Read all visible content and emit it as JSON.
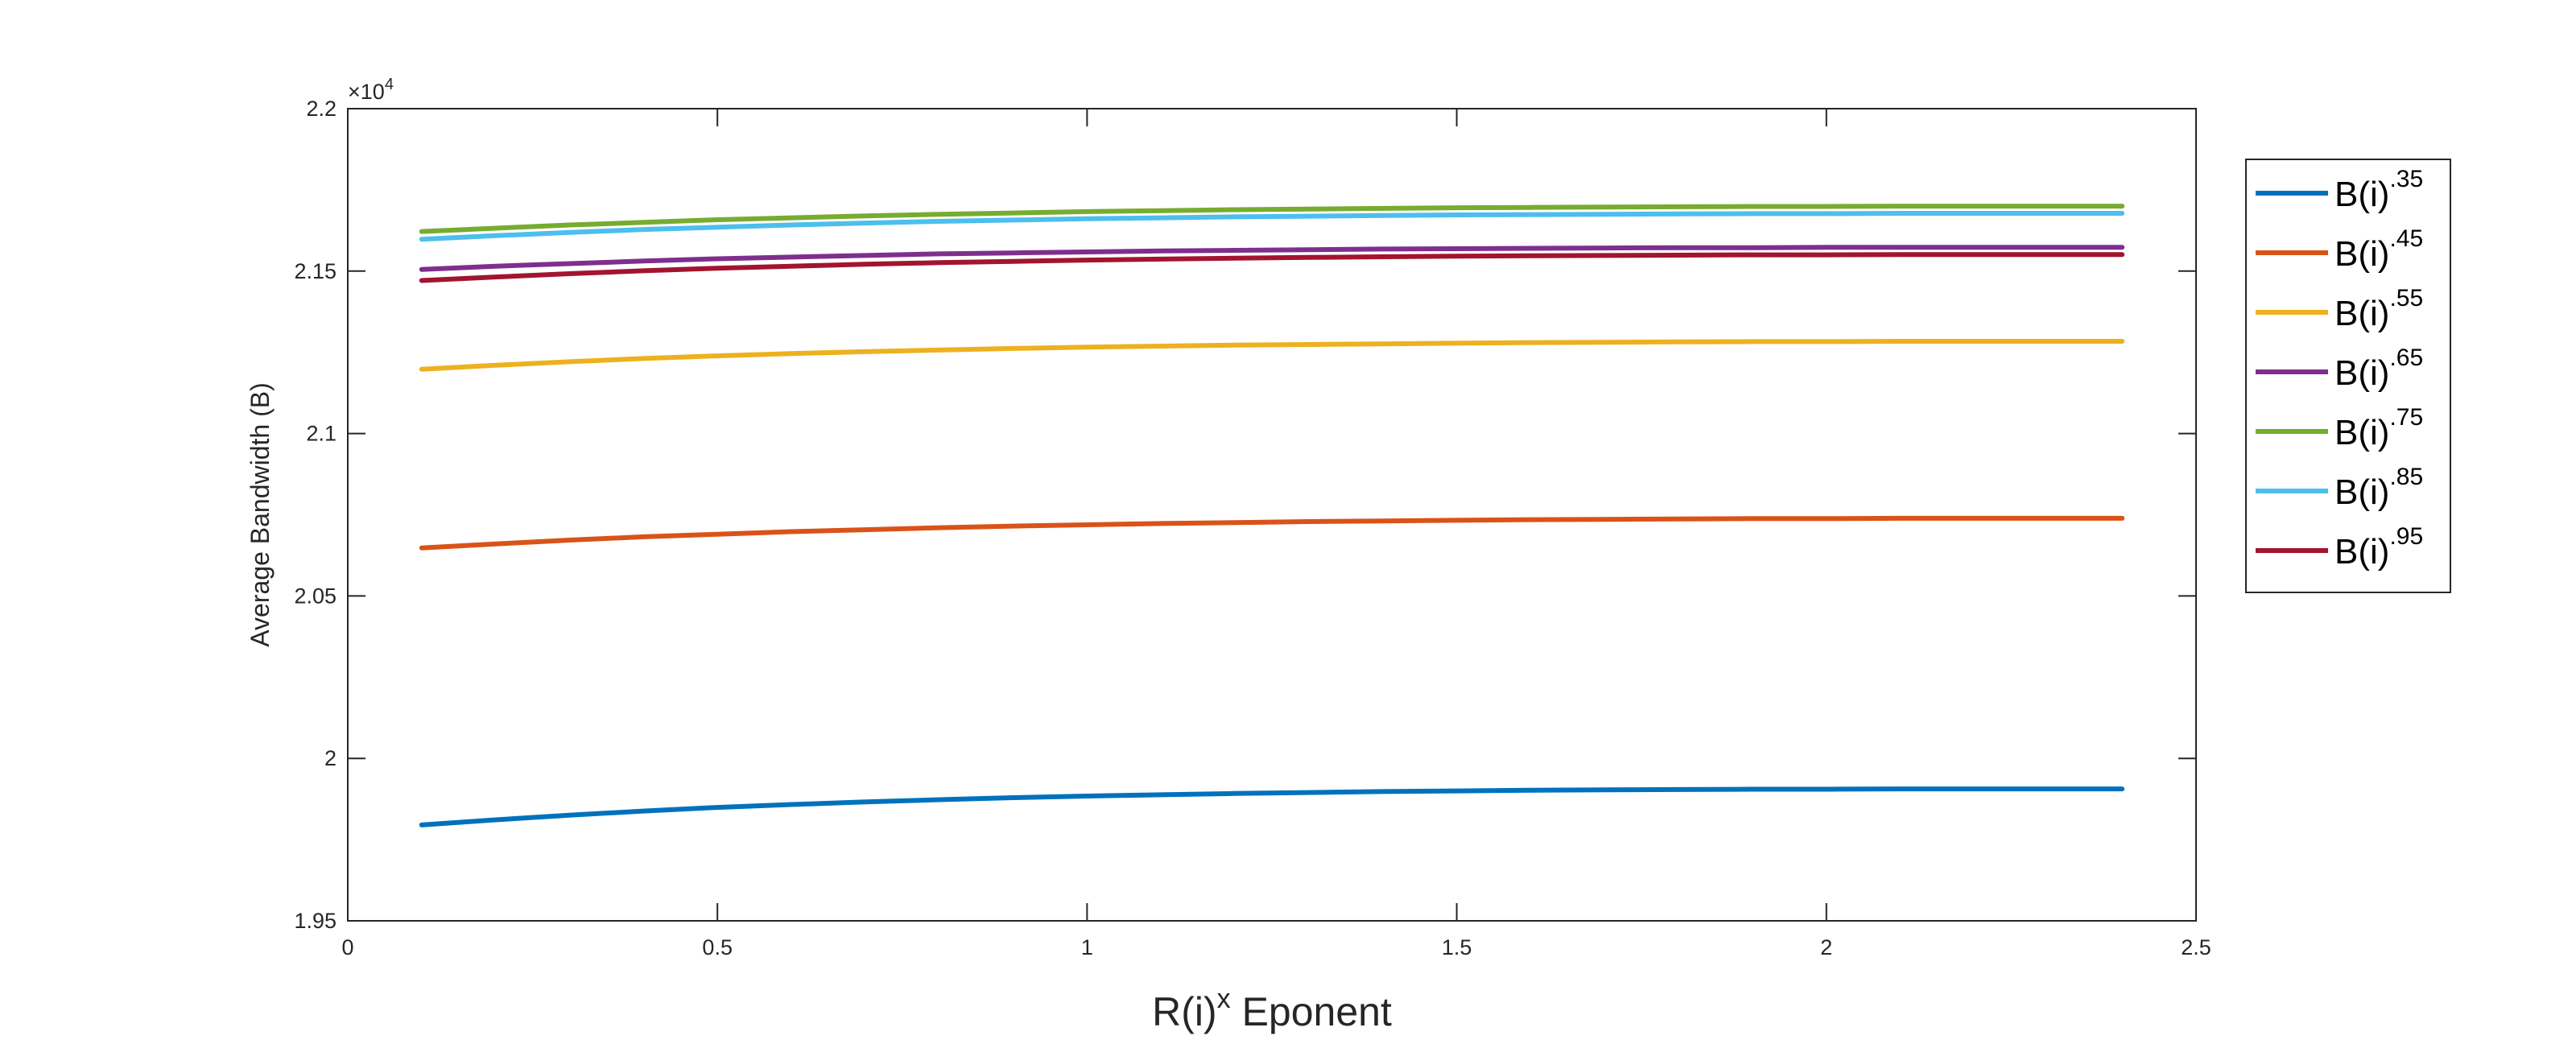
{
  "chart_data": {
    "type": "line",
    "xlabel": "R(i)",
    "xlabel_sup": "x",
    "xlabel_tail": " Eponent",
    "ylabel": "Average Bandwidth (B)",
    "y_exponent_label": "×10",
    "y_exponent_power": "4",
    "xlim": [
      0,
      2.5
    ],
    "ylim": [
      19500,
      22000
    ],
    "xticks": [
      0,
      0.5,
      1,
      1.5,
      2,
      2.5
    ],
    "xtick_labels": [
      "0",
      "0.5",
      "1",
      "1.5",
      "2",
      "2.5"
    ],
    "yticks": [
      19500,
      20000,
      20500,
      21000,
      21500,
      22000
    ],
    "ytick_labels": [
      "1.95",
      "2",
      "2.05",
      "2.1",
      "2.15",
      "2.2"
    ],
    "x": [
      0.1,
      0.2,
      0.3,
      0.4,
      0.5,
      0.6,
      0.7,
      0.8,
      0.9,
      1.0,
      1.1,
      1.2,
      1.3,
      1.4,
      1.5,
      1.6,
      1.7,
      1.8,
      1.9,
      2.0,
      2.1,
      2.2,
      2.3,
      2.4
    ],
    "series": [
      {
        "name": "B(i)",
        "sup": ".35",
        "color": "#0072BD",
        "values": [
          19795,
          19811,
          19825,
          19838,
          19849,
          19858,
          19866,
          19873,
          19879,
          19884,
          19888,
          19892,
          19895,
          19898,
          19900,
          19902,
          19903,
          19904,
          19905,
          19905,
          19906,
          19906,
          19906,
          19906
        ]
      },
      {
        "name": "B(i)",
        "sup": ".45",
        "color": "#D95319",
        "values": [
          20648,
          20660,
          20672,
          20682,
          20690,
          20698,
          20704,
          20710,
          20715,
          20719,
          20723,
          20726,
          20729,
          20731,
          20733,
          20735,
          20736,
          20737,
          20738,
          20738,
          20739,
          20739,
          20739,
          20739
        ]
      },
      {
        "name": "B(i)",
        "sup": ".55",
        "color": "#EDB120",
        "values": [
          21198,
          21210,
          21221,
          21231,
          21239,
          21246,
          21252,
          21257,
          21262,
          21266,
          21269,
          21272,
          21274,
          21276,
          21278,
          21280,
          21281,
          21282,
          21283,
          21283,
          21284,
          21284,
          21284,
          21284
        ]
      },
      {
        "name": "B(i)",
        "sup": ".65",
        "color": "#7E2F8E",
        "values": [
          21505,
          21515,
          21523,
          21531,
          21538,
          21543,
          21548,
          21553,
          21556,
          21559,
          21562,
          21564,
          21566,
          21568,
          21569,
          21570,
          21571,
          21572,
          21572,
          21573,
          21573,
          21573,
          21573,
          21573
        ]
      },
      {
        "name": "B(i)",
        "sup": ".75",
        "color": "#77AC30",
        "values": [
          21622,
          21632,
          21642,
          21650,
          21658,
          21664,
          21670,
          21675,
          21679,
          21683,
          21686,
          21689,
          21691,
          21693,
          21695,
          21696,
          21697,
          21698,
          21699,
          21699,
          21700,
          21700,
          21700,
          21700
        ]
      },
      {
        "name": "B(i)",
        "sup": ".85",
        "color": "#4DBEEE",
        "values": [
          21598,
          21609,
          21619,
          21628,
          21635,
          21642,
          21648,
          21653,
          21657,
          21661,
          21664,
          21667,
          21669,
          21671,
          21673,
          21674,
          21675,
          21676,
          21677,
          21677,
          21678,
          21678,
          21678,
          21678
        ]
      },
      {
        "name": "B(i)",
        "sup": ".95",
        "color": "#A2142F",
        "values": [
          21471,
          21482,
          21492,
          21501,
          21509,
          21515,
          21521,
          21526,
          21530,
          21534,
          21537,
          21540,
          21542,
          21544,
          21546,
          21547,
          21548,
          21549,
          21550,
          21550,
          21551,
          21551,
          21551,
          21551
        ]
      }
    ],
    "grid": false,
    "legend_position": "outside-right"
  }
}
